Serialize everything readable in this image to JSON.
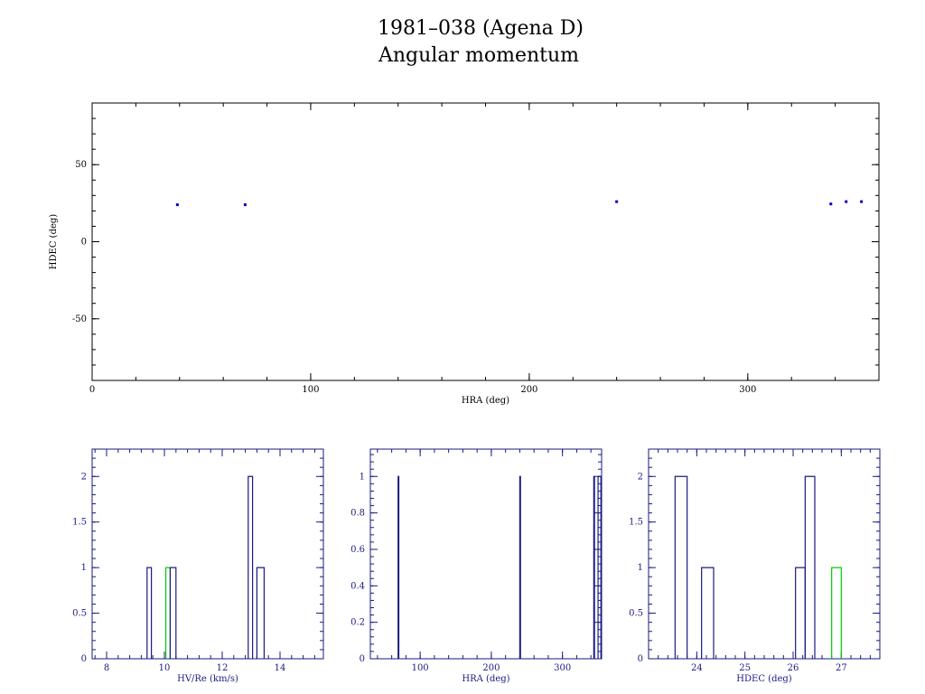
{
  "title": "1981–038 (Agena D)",
  "subtitle": "Angular momentum",
  "colors": {
    "frame": "#000000",
    "frame_small": "#1a1a80",
    "points": "#0000cc",
    "hist": "#1a1a80",
    "highlight": "#00cc00"
  },
  "chart_data": [
    {
      "type": "scatter",
      "xlabel": "HRA (deg)",
      "ylabel": "HDEC (deg)",
      "xlim": [
        0,
        360
      ],
      "ylim": [
        -90,
        90
      ],
      "xticks": [
        0,
        100,
        200,
        300
      ],
      "yticks": [
        50,
        0,
        -50
      ],
      "xtick_labels": [
        "0",
        "100",
        "200",
        "300"
      ],
      "ytick_labels": [
        "50",
        "0",
        "-50"
      ],
      "points": [
        {
          "x": 39,
          "y": 24
        },
        {
          "x": 70,
          "y": 24
        },
        {
          "x": 240,
          "y": 26
        },
        {
          "x": 338,
          "y": 24.5
        },
        {
          "x": 345,
          "y": 26
        },
        {
          "x": 352,
          "y": 26
        }
      ]
    },
    {
      "type": "bar",
      "subtype": "histogram",
      "xlabel": "HV/Re (km/s)",
      "ylabel": "",
      "xlim": [
        7.5,
        15.5
      ],
      "ylim": [
        0,
        2.3
      ],
      "xticks": [
        8,
        10,
        12,
        14
      ],
      "yticks": [
        0,
        0.5,
        1,
        1.5,
        2
      ],
      "xtick_labels": [
        "8",
        "10",
        "12",
        "14"
      ],
      "ytick_labels": [
        "0",
        "0.5",
        "1",
        "1.5",
        "2"
      ],
      "bins": [
        {
          "x0": 9.4,
          "x1": 9.55,
          "count": 1,
          "highlight": false
        },
        {
          "x0": 10.05,
          "x1": 10.2,
          "count": 1,
          "highlight": true
        },
        {
          "x0": 10.2,
          "x1": 10.4,
          "count": 1,
          "highlight": false
        },
        {
          "x0": 12.9,
          "x1": 13.05,
          "count": 2,
          "highlight": false
        },
        {
          "x0": 13.2,
          "x1": 13.45,
          "count": 1,
          "highlight": false
        }
      ]
    },
    {
      "type": "bar",
      "subtype": "histogram",
      "xlabel": "HRA (deg)",
      "ylabel": "",
      "xlim": [
        30,
        355
      ],
      "ylim": [
        0,
        1.15
      ],
      "xticks": [
        100,
        200,
        300
      ],
      "yticks": [
        0,
        0.2,
        0.4,
        0.6,
        0.8,
        1
      ],
      "xtick_labels": [
        "100",
        "200",
        "300"
      ],
      "ytick_labels": [
        "0",
        "0.2",
        "0.4",
        "0.6",
        "0.8",
        "1"
      ],
      "bins": [
        {
          "x0": 69,
          "x1": 70,
          "count": 1,
          "highlight": false
        },
        {
          "x0": 240,
          "x1": 241,
          "count": 1,
          "highlight": false
        },
        {
          "x0": 344,
          "x1": 345,
          "count": 1,
          "highlight": false
        },
        {
          "x0": 350,
          "x1": 354,
          "count": 1,
          "highlight": false
        }
      ]
    },
    {
      "type": "bar",
      "subtype": "histogram",
      "xlabel": "HDEC (deg)",
      "ylabel": "",
      "xlim": [
        23,
        27.8
      ],
      "ylim": [
        0,
        2.3
      ],
      "xticks": [
        24,
        25,
        26,
        27
      ],
      "yticks": [
        0,
        0.5,
        1,
        1.5,
        2
      ],
      "xtick_labels": [
        "24",
        "25",
        "26",
        "27"
      ],
      "ytick_labels": [
        "0",
        "0.5",
        "1",
        "1.5",
        "2"
      ],
      "bins": [
        {
          "x0": 23.55,
          "x1": 23.8,
          "count": 2,
          "highlight": false
        },
        {
          "x0": 24.1,
          "x1": 24.35,
          "count": 1,
          "highlight": false
        },
        {
          "x0": 26.05,
          "x1": 26.25,
          "count": 1,
          "highlight": false
        },
        {
          "x0": 26.25,
          "x1": 26.45,
          "count": 2,
          "highlight": false
        },
        {
          "x0": 26.8,
          "x1": 27.0,
          "count": 1,
          "highlight": true
        }
      ]
    }
  ]
}
